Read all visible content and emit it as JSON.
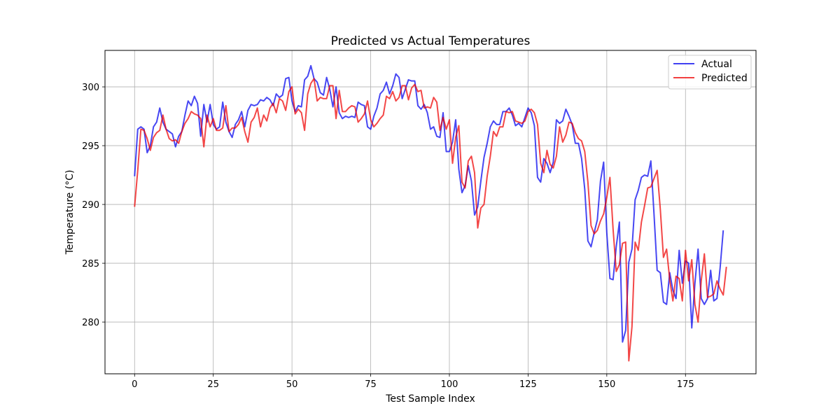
{
  "chart_data": {
    "type": "line",
    "title": "Predicted vs Actual Temperatures",
    "xlabel": "Test Sample Index",
    "ylabel": "Temperature (°C)",
    "xlim": [
      -9.4,
      197.4
    ],
    "ylim": [
      275.6,
      303.1
    ],
    "xticks": [
      0,
      25,
      50,
      75,
      100,
      125,
      150,
      175
    ],
    "yticks": [
      280,
      285,
      290,
      295,
      300
    ],
    "grid": true,
    "legend_position": "top-right",
    "series": [
      {
        "name": "Actual",
        "color": "#0000ee",
        "values": [
          292.4,
          296.4,
          296.6,
          296.4,
          294.4,
          295.0,
          296.6,
          297.0,
          298.2,
          297.0,
          296.4,
          296.2,
          296.0,
          294.9,
          295.8,
          296.2,
          297.6,
          298.8,
          298.4,
          299.2,
          298.6,
          295.8,
          298.5,
          297.0,
          298.5,
          296.8,
          296.4,
          296.6,
          298.7,
          297.0,
          296.2,
          295.7,
          296.8,
          297.2,
          297.9,
          296.6,
          298.0,
          298.5,
          298.4,
          298.5,
          298.9,
          298.8,
          299.1,
          298.9,
          298.4,
          299.4,
          299.1,
          299.3,
          300.7,
          300.8,
          298.8,
          297.9,
          298.4,
          298.3,
          300.6,
          300.9,
          301.8,
          300.7,
          300.4,
          299.5,
          299.3,
          300.8,
          299.8,
          298.3,
          300.0,
          297.8,
          297.3,
          297.5,
          297.4,
          297.5,
          297.4,
          298.7,
          298.5,
          298.4,
          296.6,
          296.4,
          297.5,
          298.2,
          299.4,
          299.7,
          300.4,
          299.4,
          300.1,
          301.1,
          300.8,
          299.0,
          299.8,
          300.6,
          300.5,
          300.5,
          298.4,
          298.1,
          298.5,
          297.8,
          296.4,
          296.6,
          295.8,
          295.7,
          297.8,
          294.5,
          294.5,
          295.3,
          297.2,
          293.0,
          291.0,
          291.6,
          293.3,
          292.0,
          289.1,
          289.8,
          292.0,
          294.0,
          295.2,
          296.6,
          297.1,
          296.8,
          296.8,
          297.9,
          297.9,
          298.2,
          297.6,
          296.7,
          296.9,
          296.6,
          297.4,
          298.2,
          297.8,
          296.7,
          292.3,
          291.9,
          293.9,
          293.5,
          292.7,
          293.6,
          297.2,
          296.9,
          297.1,
          298.1,
          297.5,
          296.8,
          295.2,
          295.2,
          293.9,
          291.3,
          286.9,
          286.4,
          287.6,
          288.7,
          292.0,
          293.6,
          287.6,
          283.7,
          283.6,
          286.4,
          288.5,
          278.3,
          279.3,
          285.1,
          286.2,
          290.4,
          291.2,
          292.3,
          292.5,
          292.4,
          293.7,
          289.2,
          284.4,
          284.2,
          281.7,
          281.5,
          284.2,
          282.7,
          282.0,
          286.1,
          283.3,
          285.2,
          285.0,
          279.5,
          283.3,
          286.2,
          282.0,
          281.5,
          282.0,
          284.4,
          281.8,
          282.0,
          284.6,
          287.8
        ]
      },
      {
        "name": "Predicted",
        "color": "#ee0000",
        "values": [
          289.8,
          292.9,
          296.4,
          296.3,
          295.6,
          294.6,
          295.7,
          296.1,
          296.3,
          297.6,
          296.4,
          295.6,
          295.4,
          295.5,
          295.2,
          296.2,
          296.9,
          297.3,
          297.9,
          297.7,
          297.6,
          297.3,
          294.9,
          297.6,
          296.6,
          297.3,
          296.3,
          296.3,
          296.5,
          298.4,
          296.2,
          296.5,
          296.5,
          296.8,
          297.4,
          296.2,
          295.3,
          297.0,
          297.4,
          298.2,
          296.6,
          297.6,
          297.1,
          298.2,
          298.6,
          297.8,
          299.0,
          298.8,
          298.0,
          299.6,
          300.0,
          297.7,
          298.1,
          297.8,
          296.3,
          299.4,
          300.3,
          300.7,
          298.8,
          299.1,
          299.0,
          299.0,
          300.1,
          300.1,
          297.3,
          299.7,
          297.9,
          297.9,
          298.2,
          298.4,
          298.3,
          297.0,
          297.3,
          297.7,
          298.8,
          297.2,
          296.6,
          296.9,
          297.3,
          297.6,
          299.2,
          299.0,
          299.6,
          298.8,
          299.1,
          300.1,
          300.1,
          298.9,
          299.9,
          300.2,
          299.6,
          299.7,
          298.2,
          298.3,
          298.2,
          299.1,
          298.7,
          296.3,
          297.4,
          296.4,
          297.2,
          293.5,
          295.7,
          296.7,
          291.9,
          291.4,
          293.7,
          294.1,
          292.7,
          288.0,
          289.7,
          290.0,
          292.4,
          294.1,
          296.2,
          295.8,
          296.6,
          296.6,
          297.9,
          297.8,
          297.9,
          297.1,
          297.0,
          296.9,
          297.1,
          297.9,
          298.1,
          297.8,
          296.8,
          293.5,
          292.7,
          294.6,
          293.4,
          293.1,
          294.1,
          296.6,
          295.3,
          295.9,
          297.0,
          296.9,
          296.1,
          295.6,
          295.4,
          294.5,
          291.9,
          288.2,
          287.5,
          287.8,
          288.6,
          289.2,
          290.6,
          292.3,
          287.9,
          284.3,
          284.9,
          286.7,
          286.8,
          276.7,
          279.6,
          286.8,
          286.1,
          288.5,
          289.9,
          291.4,
          291.5,
          292.2,
          292.9,
          289.6,
          285.5,
          286.2,
          283.6,
          281.8,
          283.9,
          283.7,
          281.8,
          286.1,
          283.5,
          285.3,
          281.5,
          280.0,
          283.5,
          285.8,
          282.1,
          282.2,
          282.4,
          283.5,
          282.8,
          282.3,
          284.7
        ]
      }
    ]
  }
}
